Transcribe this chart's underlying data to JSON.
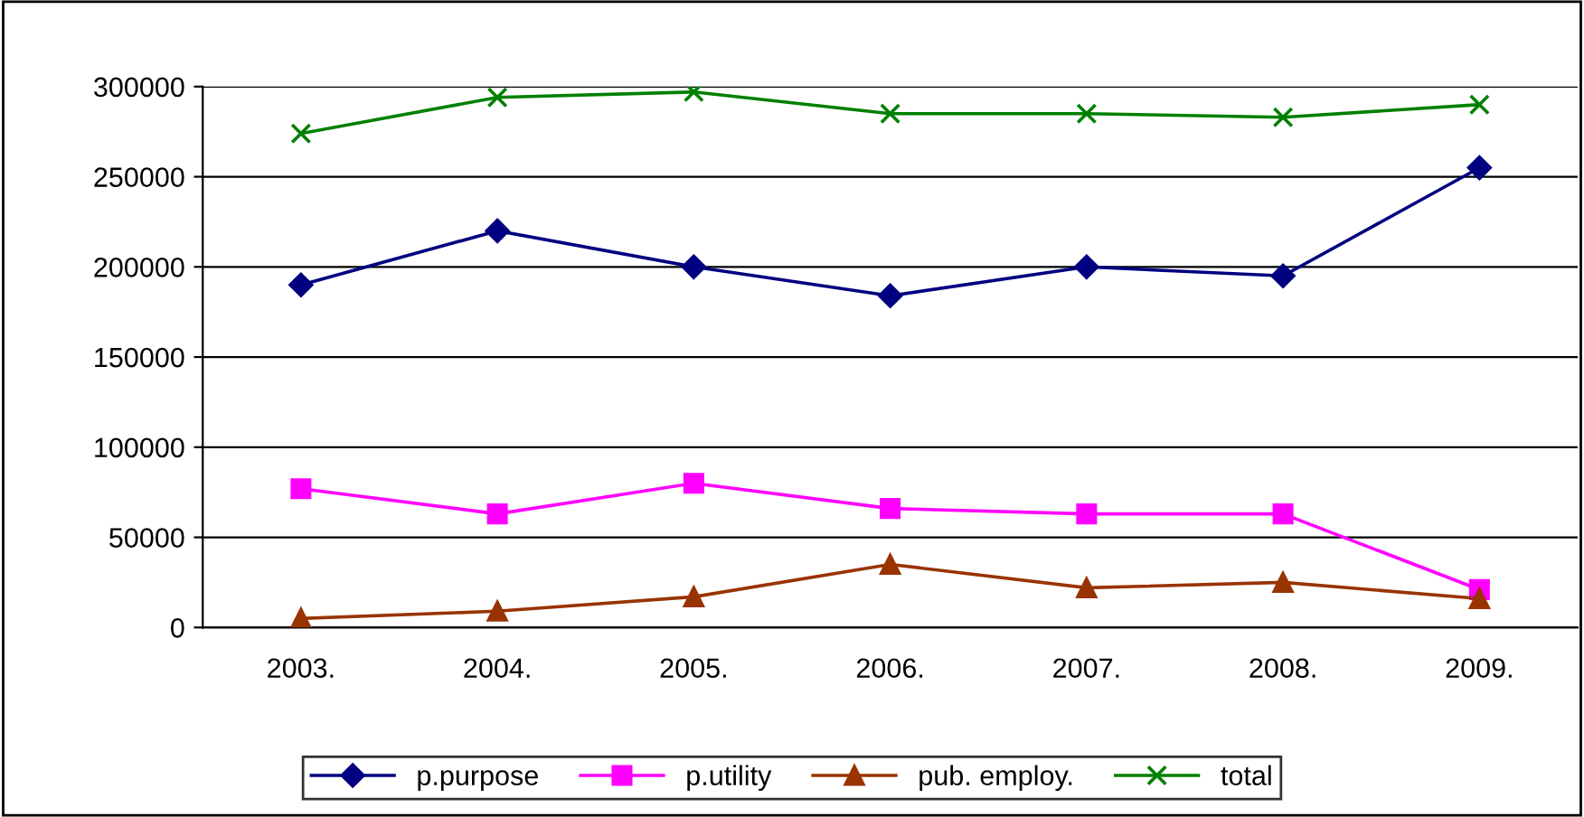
{
  "chart_data": {
    "type": "line",
    "categories": [
      "2003.",
      "2004.",
      "2005.",
      "2006.",
      "2007.",
      "2008.",
      "2009."
    ],
    "series": [
      {
        "name": "p.purpose",
        "color": "#000080",
        "marker": "diamond",
        "values": [
          190000,
          220000,
          200000,
          184000,
          200000,
          195000,
          255000
        ]
      },
      {
        "name": "p.utility",
        "color": "#ff00ff",
        "marker": "square",
        "values": [
          77000,
          63000,
          80000,
          66000,
          63000,
          63000,
          21000
        ]
      },
      {
        "name": "pub. employ.",
        "color": "#993300",
        "marker": "triangle",
        "values": [
          5000,
          9000,
          17000,
          35000,
          22000,
          25000,
          16000
        ]
      },
      {
        "name": "total",
        "color": "#008000",
        "marker": "cross",
        "values": [
          274000,
          294000,
          297000,
          285000,
          285000,
          283000,
          290000
        ]
      }
    ],
    "ylim": [
      0,
      300000
    ],
    "yticks": [
      0,
      50000,
      100000,
      150000,
      200000,
      250000,
      300000
    ],
    "grid": "y",
    "legend": "bottom",
    "line_style": "solid"
  }
}
